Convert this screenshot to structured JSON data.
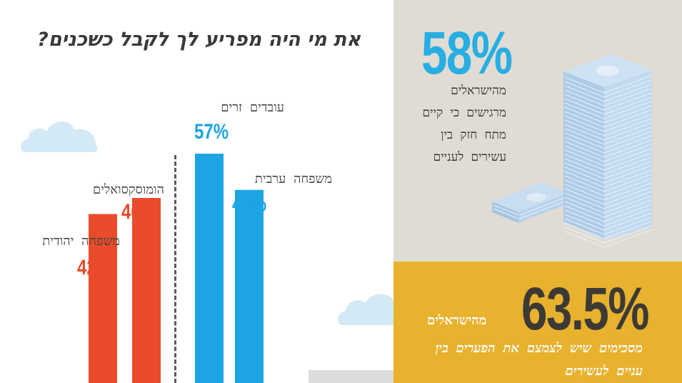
{
  "title": "את מי היה מפריע לך לקבל כשכנים?",
  "chart_data": {
    "type": "bar",
    "title": "את מי היה מפריע לך לקבל כשכנים?",
    "categories": [
      "משפחה יהודית",
      "הומוסקסואלים",
      "עובדים זרים",
      "משפחה ערבית"
    ],
    "values": [
      42,
      46,
      57,
      48
    ],
    "labels": [
      "42%",
      "46%",
      "57%",
      "48%"
    ],
    "colors": [
      "#ea4b2a",
      "#ea4b2a",
      "#1da4e4",
      "#1da4e4"
    ],
    "ylim": [
      0,
      100
    ]
  },
  "stats": {
    "first": {
      "value": "58%",
      "text": "מהישראלים מרגישים כי קיים מתח חזק בין עשירים לעניים",
      "color": "#27aee3"
    },
    "second": {
      "value": "63.5%",
      "lead": "מהישראלים",
      "text": "מסכימים שיש לצמצם את הפערים בין עניים לעשירים"
    }
  },
  "colors": {
    "beige_panel": "#e0dcd3",
    "yellow_panel": "#e8b22e",
    "orange": "#ea4b2a",
    "blue": "#1da4e4"
  }
}
